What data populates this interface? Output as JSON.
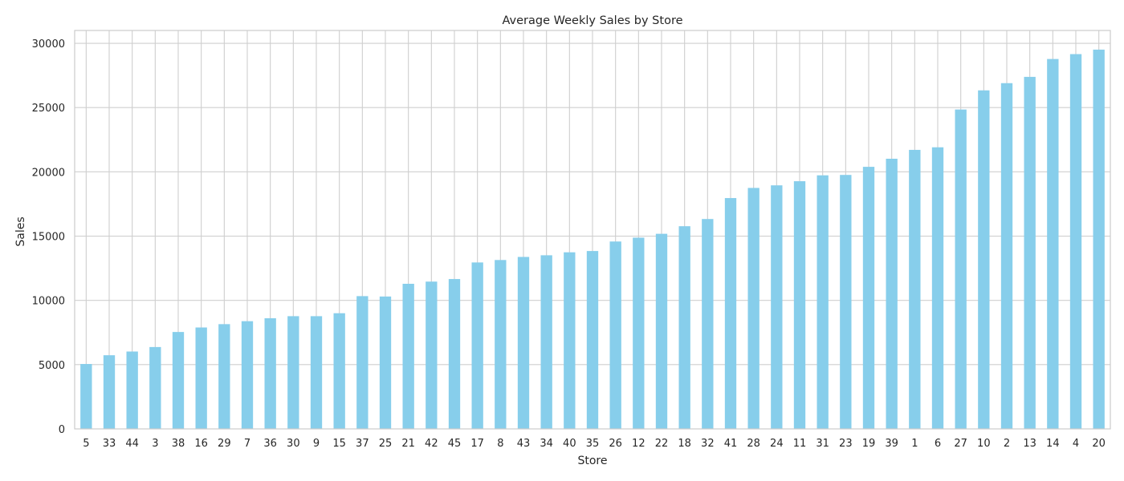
{
  "chart_data": {
    "type": "bar",
    "title": "Average Weekly Sales by Store",
    "xlabel": "Store",
    "ylabel": "Sales",
    "ylim": [
      0,
      31000
    ],
    "yticks": [
      0,
      5000,
      10000,
      15000,
      20000,
      25000,
      30000
    ],
    "grid": true,
    "bar_color": "#87ceeb",
    "categories": [
      "5",
      "33",
      "44",
      "3",
      "38",
      "16",
      "29",
      "7",
      "36",
      "30",
      "9",
      "15",
      "37",
      "25",
      "21",
      "42",
      "45",
      "17",
      "8",
      "43",
      "34",
      "40",
      "35",
      "26",
      "12",
      "22",
      "18",
      "32",
      "41",
      "28",
      "24",
      "11",
      "31",
      "23",
      "19",
      "39",
      "1",
      "6",
      "27",
      "10",
      "2",
      "13",
      "14",
      "4",
      "20"
    ],
    "values": [
      5050,
      5730,
      6020,
      6370,
      7540,
      7890,
      8150,
      8380,
      8610,
      8770,
      8770,
      9000,
      10330,
      10300,
      11290,
      11460,
      11660,
      12950,
      13140,
      13380,
      13510,
      13740,
      13840,
      14580,
      14880,
      15180,
      15770,
      16330,
      17960,
      18750,
      18950,
      19270,
      19730,
      19760,
      20390,
      21020,
      21710,
      21910,
      24850,
      26340,
      26900,
      27390,
      28780,
      29160,
      29510
    ]
  }
}
